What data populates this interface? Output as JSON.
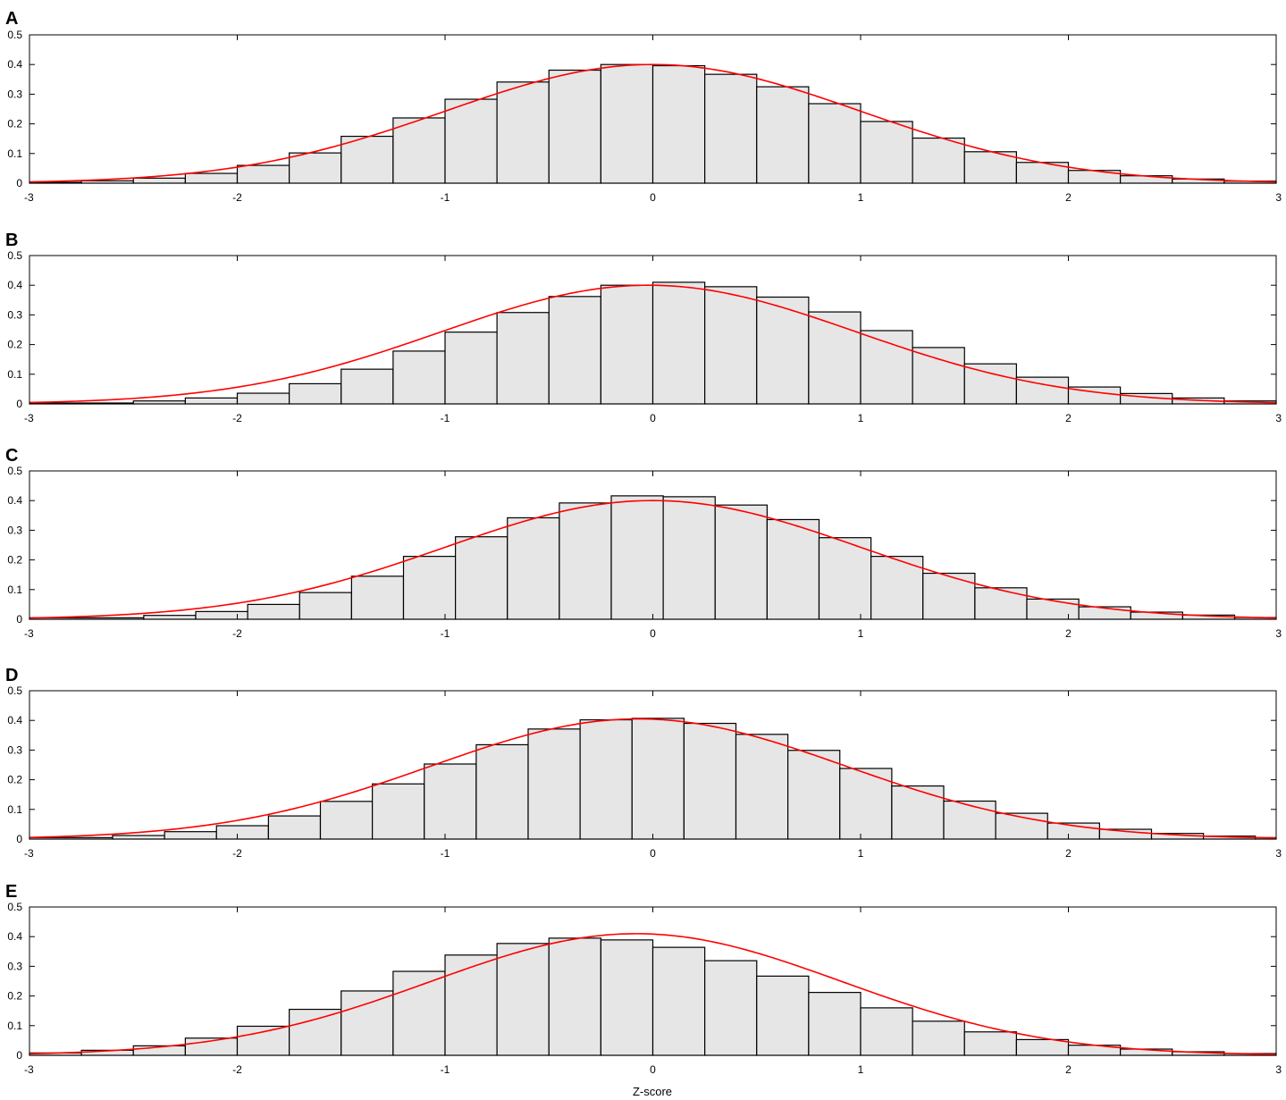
{
  "figure": {
    "xlabel": "Z-score"
  },
  "style": {
    "bar_fill": "#e6e6e6",
    "bar_stroke": "#000000",
    "curve_color": "#ff0000",
    "frame_color": "#000000"
  },
  "chart_data": [
    {
      "panel": "A",
      "type": "bar",
      "xlim": [
        -3,
        3
      ],
      "ylim": [
        0,
        0.5
      ],
      "xticks": [
        "-3",
        "-2",
        "-1",
        "0",
        "1",
        "2",
        "3"
      ],
      "yticks": [
        "0",
        "0.1",
        "0.2",
        "0.3",
        "0.4",
        "0.5"
      ],
      "bin_edges": [
        -3,
        -2.75,
        -2.5,
        -2.25,
        -2,
        -1.75,
        -1.5,
        -1.25,
        -1,
        -0.75,
        -0.5,
        -0.25,
        0,
        0.25,
        0.5,
        0.75,
        1,
        1.25,
        1.5,
        1.75,
        2,
        2.25,
        2.5,
        2.75,
        3
      ],
      "values": [
        0.003,
        0.008,
        0.017,
        0.033,
        0.06,
        0.102,
        0.158,
        0.22,
        0.283,
        0.341,
        0.381,
        0.4,
        0.396,
        0.367,
        0.325,
        0.268,
        0.208,
        0.152,
        0.106,
        0.07,
        0.043,
        0.025,
        0.014,
        0.007
      ],
      "curve": {
        "mean": 0,
        "sd": 1,
        "peak": 0.4
      }
    },
    {
      "panel": "B",
      "type": "bar",
      "xlim": [
        -3,
        3
      ],
      "ylim": [
        0,
        0.5
      ],
      "xticks": [
        "-3",
        "-2",
        "-1",
        "0",
        "1",
        "2",
        "3"
      ],
      "yticks": [
        "0",
        "0.1",
        "0.2",
        "0.3",
        "0.4",
        "0.5"
      ],
      "bin_edges": [
        -3,
        -2.5,
        -2.25,
        -2,
        -1.75,
        -1.5,
        -1.25,
        -1,
        -0.75,
        -0.5,
        -0.25,
        0,
        0.25,
        0.5,
        0.75,
        1,
        1.25,
        1.5,
        1.75,
        2,
        2.25,
        2.5,
        2.75,
        3
      ],
      "values": [
        0.003,
        0.01,
        0.02,
        0.036,
        0.068,
        0.117,
        0.178,
        0.242,
        0.308,
        0.362,
        0.4,
        0.41,
        0.395,
        0.36,
        0.31,
        0.247,
        0.19,
        0.135,
        0.09,
        0.057,
        0.035,
        0.02,
        0.01
      ],
      "curve": {
        "mean": -0.02,
        "sd": 1,
        "peak": 0.4
      }
    },
    {
      "panel": "C",
      "type": "bar",
      "xlim": [
        -3,
        3
      ],
      "ylim": [
        0,
        0.5
      ],
      "xticks": [
        "-3",
        "-2",
        "-1",
        "0",
        "1",
        "2",
        "3"
      ],
      "yticks": [
        "0",
        "0.1",
        "0.2",
        "0.3",
        "0.4",
        "0.5"
      ],
      "bin_edges": [
        -3,
        -2.45,
        -2.2,
        -1.95,
        -1.7,
        -1.45,
        -1.2,
        -0.95,
        -0.7,
        -0.45,
        -0.2,
        0.05,
        0.3,
        0.55,
        0.8,
        1.05,
        1.3,
        1.55,
        1.8,
        2.05,
        2.3,
        2.55,
        2.8,
        3
      ],
      "values": [
        0.005,
        0.013,
        0.026,
        0.05,
        0.09,
        0.145,
        0.212,
        0.278,
        0.342,
        0.392,
        0.416,
        0.413,
        0.385,
        0.336,
        0.275,
        0.212,
        0.155,
        0.106,
        0.068,
        0.042,
        0.024,
        0.014,
        0.006
      ],
      "curve": {
        "mean": 0,
        "sd": 1,
        "peak": 0.4
      }
    },
    {
      "panel": "D",
      "type": "bar",
      "xlim": [
        -3,
        3
      ],
      "ylim": [
        0,
        0.5
      ],
      "xticks": [
        "-3",
        "-2",
        "-1",
        "0",
        "1",
        "2",
        "3"
      ],
      "yticks": [
        "0",
        "0.1",
        "0.2",
        "0.3",
        "0.4",
        "0.5"
      ],
      "bin_edges": [
        -3,
        -2.6,
        -2.35,
        -2.1,
        -1.85,
        -1.6,
        -1.35,
        -1.1,
        -0.85,
        -0.6,
        -0.35,
        -0.1,
        0.15,
        0.4,
        0.65,
        0.9,
        1.15,
        1.4,
        1.65,
        1.9,
        2.15,
        2.4,
        2.65,
        2.9,
        3
      ],
      "values": [
        0.005,
        0.012,
        0.025,
        0.045,
        0.078,
        0.127,
        0.186,
        0.253,
        0.318,
        0.371,
        0.402,
        0.407,
        0.39,
        0.353,
        0.299,
        0.238,
        0.179,
        0.128,
        0.087,
        0.054,
        0.033,
        0.019,
        0.01,
        0.005
      ],
      "curve": {
        "mean": -0.07,
        "sd": 1,
        "peak": 0.405
      }
    },
    {
      "panel": "E",
      "type": "bar",
      "xlim": [
        -3,
        3
      ],
      "ylim": [
        0,
        0.5
      ],
      "xticks": [
        "-3",
        "-2",
        "-1",
        "0",
        "1",
        "2",
        "3"
      ],
      "yticks": [
        "0",
        "0.1",
        "0.2",
        "0.3",
        "0.4",
        "0.5"
      ],
      "bin_edges": [
        -3,
        -2.75,
        -2.5,
        -2.25,
        -2,
        -1.75,
        -1.5,
        -1.25,
        -1,
        -0.75,
        -0.5,
        -0.25,
        0,
        0.25,
        0.5,
        0.75,
        1,
        1.25,
        1.5,
        1.75,
        2,
        2.25,
        2.5,
        2.75,
        3
      ],
      "values": [
        0.008,
        0.017,
        0.032,
        0.058,
        0.098,
        0.155,
        0.217,
        0.283,
        0.338,
        0.377,
        0.395,
        0.389,
        0.364,
        0.319,
        0.267,
        0.212,
        0.16,
        0.115,
        0.079,
        0.053,
        0.034,
        0.021,
        0.012,
        0.006
      ],
      "curve": {
        "mean": -0.08,
        "sd": 0.99,
        "peak": 0.41
      }
    }
  ]
}
